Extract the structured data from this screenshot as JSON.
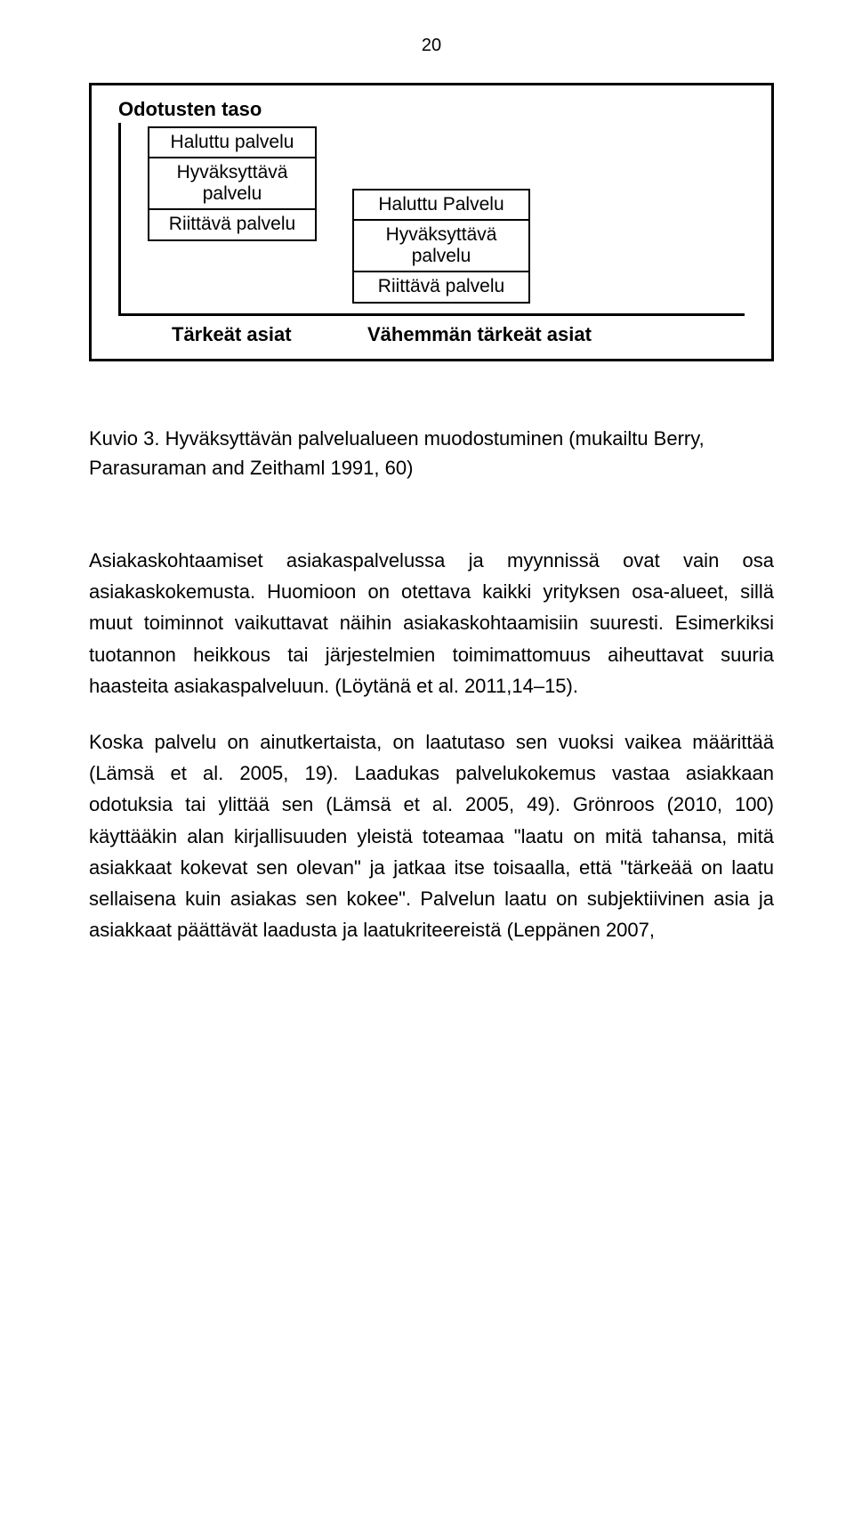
{
  "page_number": "20",
  "diagram": {
    "title": "Odotusten taso",
    "left_stack": {
      "cells": [
        "Haluttu palvelu",
        "Hyväksyttävä palvelu",
        "Riittävä palvelu"
      ]
    },
    "right_stack": {
      "cells": [
        "Haluttu Palvelu",
        "Hyväksyttävä palvelu",
        "Riittävä palvelu"
      ]
    },
    "x_labels": {
      "left": "Tärkeät asiat",
      "right": "Vähemmän tärkeät asiat"
    },
    "border_color": "#000000",
    "background_color": "#ffffff"
  },
  "caption": "Kuvio 3. Hyväksyttävän palvelualueen muodostuminen (mukailtu Berry, Parasuraman and Zeithaml 1991, 60)",
  "paragraphs": [
    "Asiakaskohtaamiset asiakaspalvelussa ja myynnissä ovat vain osa asiakaskokemusta. Huomioon on otettava kaikki yrityksen osa-alueet, sillä muut toiminnot vaikuttavat näihin asiakaskohtaamisiin suuresti. Esimerkiksi tuotannon heikkous tai järjestelmien toimimattomuus aiheuttavat suuria haasteita asiakaspalveluun. (Löytänä et al. 2011,14–15).",
    "Koska palvelu on ainutkertaista, on laatutaso sen vuoksi vaikea määrittää (Lämsä et al. 2005, 19). Laadukas palvelukokemus vastaa asiakkaan odotuksia tai ylittää sen (Lämsä et al. 2005, 49). Grönroos (2010, 100) käyttääkin alan kirjallisuuden yleistä toteamaa \"laatu on mitä tahansa, mitä asiakkaat kokevat sen olevan\" ja jatkaa itse toisaalla, että \"tärkeää on laatu sellaisena kuin asiakas sen kokee\". Palvelun laatu on subjektiivinen asia ja asiakkaat päättävät laadusta ja laatukriteereistä (Leppänen 2007,"
  ]
}
